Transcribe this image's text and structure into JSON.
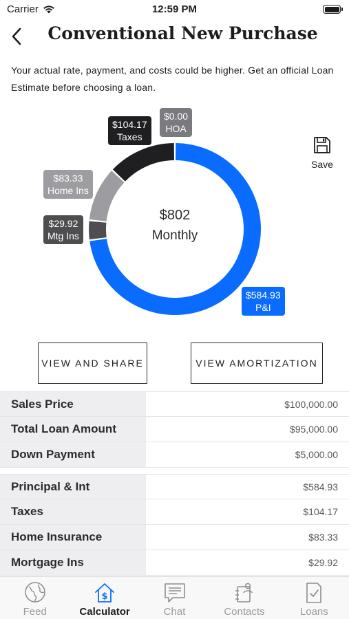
{
  "status_bar": {
    "carrier": "Carrier",
    "time": "12:59 PM"
  },
  "header": {
    "title": "Conventional New Purchase"
  },
  "disclaimer": "Your actual rate, payment, and costs could be higher. Get an official Loan Estimate before choosing a loan.",
  "chart_data": {
    "type": "pie",
    "style": "donut",
    "center_value": "$802",
    "center_label": "Monthly",
    "slices": [
      {
        "label": "P&I",
        "value": 584.93,
        "display": "$584.93",
        "color": "#0a6cff"
      },
      {
        "label": "Mtg Ins",
        "value": 29.92,
        "display": "$29.92",
        "color": "#4e4e50"
      },
      {
        "label": "Home Ins",
        "value": 83.33,
        "display": "$83.33",
        "color": "#9d9da1"
      },
      {
        "label": "Taxes",
        "value": 104.17,
        "display": "$104.17",
        "color": "#1f1f22"
      },
      {
        "label": "HOA",
        "value": 0.0,
        "display": "$0.00",
        "color": "#7b7b7f"
      }
    ]
  },
  "save": {
    "label": "Save"
  },
  "actions": {
    "share_label": "VIEW AND SHARE",
    "amortization_label": "VIEW AMORTIZATION"
  },
  "summary": [
    {
      "label": "Sales Price",
      "value": "$100,000.00"
    },
    {
      "label": "Total Loan Amount",
      "value": "$95,000.00"
    },
    {
      "label": "Down Payment",
      "value": "$5,000.00"
    }
  ],
  "breakdown": [
    {
      "label": "Principal & Int",
      "value": "$584.93"
    },
    {
      "label": "Taxes",
      "value": "$104.17"
    },
    {
      "label": "Home Insurance",
      "value": "$83.33"
    },
    {
      "label": "Mortgage Ins",
      "value": "$29.92"
    }
  ],
  "tabs": [
    {
      "label": "Feed",
      "icon": "globe-icon"
    },
    {
      "label": "Calculator",
      "icon": "house-dollar-icon",
      "active": true
    },
    {
      "label": "Chat",
      "icon": "chat-icon"
    },
    {
      "label": "Contacts",
      "icon": "contacts-icon"
    },
    {
      "label": "Loans",
      "icon": "document-check-icon"
    }
  ]
}
